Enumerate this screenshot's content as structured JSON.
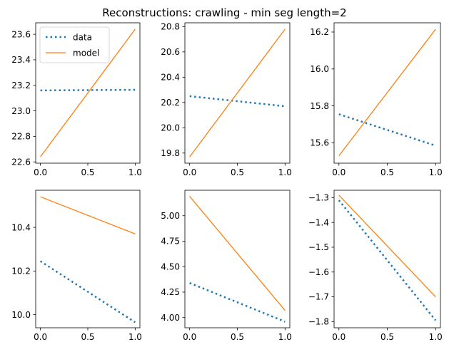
{
  "figure": {
    "title": "Reconstructions: crawling - min seg length=2",
    "colors": {
      "data": "#1f77b4",
      "model": "#ff7f0e"
    }
  },
  "legend": {
    "entries": [
      {
        "label": "data",
        "style": "dotted",
        "color": "#1f77b4"
      },
      {
        "label": "model",
        "style": "solid",
        "color": "#ff7f0e"
      }
    ]
  },
  "chart_data": [
    {
      "type": "line",
      "x": [
        0,
        1
      ],
      "xlim": [
        -0.05,
        1.05
      ],
      "ylim": [
        22.59,
        23.69
      ],
      "xticks": [
        "0.0",
        "0.5",
        "1.0"
      ],
      "yticks": [
        "22.6",
        "22.8",
        "23.0",
        "23.2",
        "23.4",
        "23.6"
      ],
      "series": [
        {
          "name": "data",
          "values": [
            23.16,
            23.165
          ]
        },
        {
          "name": "model",
          "values": [
            22.64,
            23.64
          ]
        }
      ]
    },
    {
      "type": "line",
      "x": [
        0,
        1
      ],
      "xlim": [
        -0.05,
        1.05
      ],
      "ylim": [
        19.72,
        20.83
      ],
      "xticks": [
        "0.0",
        "0.5",
        "1.0"
      ],
      "yticks": [
        "19.8",
        "20.0",
        "20.2",
        "20.4",
        "20.6",
        "20.8"
      ],
      "series": [
        {
          "name": "data",
          "values": [
            20.25,
            20.17
          ]
        },
        {
          "name": "model",
          "values": [
            19.77,
            20.78
          ]
        }
      ]
    },
    {
      "type": "line",
      "x": [
        0,
        1
      ],
      "xlim": [
        -0.05,
        1.05
      ],
      "ylim": [
        15.49,
        16.25
      ],
      "xticks": [
        "0.0",
        "0.5",
        "1.0"
      ],
      "yticks": [
        "15.6",
        "15.8",
        "16.0",
        "16.2"
      ],
      "series": [
        {
          "name": "data",
          "values": [
            15.755,
            15.585
          ]
        },
        {
          "name": "model",
          "values": [
            15.53,
            16.215
          ]
        }
      ]
    },
    {
      "type": "line",
      "x": [
        0,
        1
      ],
      "xlim": [
        -0.05,
        1.05
      ],
      "ylim": [
        9.94,
        10.57
      ],
      "xticks": [
        "0.0",
        "0.5",
        "1.0"
      ],
      "yticks": [
        "10.0",
        "10.2",
        "10.4"
      ],
      "series": [
        {
          "name": "data",
          "values": [
            10.245,
            9.965
          ]
        },
        {
          "name": "model",
          "values": [
            10.54,
            10.37
          ]
        }
      ]
    },
    {
      "type": "line",
      "x": [
        0,
        1
      ],
      "xlim": [
        -0.05,
        1.05
      ],
      "ylim": [
        3.9,
        5.25
      ],
      "xticks": [
        "0.0",
        "0.5",
        "1.0"
      ],
      "yticks": [
        "4.00",
        "4.25",
        "4.50",
        "4.75",
        "5.00"
      ],
      "series": [
        {
          "name": "data",
          "values": [
            4.34,
            3.96
          ]
        },
        {
          "name": "model",
          "values": [
            5.19,
            4.07
          ]
        }
      ]
    },
    {
      "type": "line",
      "x": [
        0,
        1
      ],
      "xlim": [
        -0.05,
        1.05
      ],
      "ylim": [
        -1.825,
        -1.27
      ],
      "xticks": [
        "0.0",
        "0.5",
        "1.0"
      ],
      "yticks": [
        "−1.3",
        "−1.4",
        "−1.5",
        "−1.6",
        "−1.7",
        "−1.8"
      ],
      "series": [
        {
          "name": "data",
          "values": [
            -1.31,
            -1.795
          ]
        },
        {
          "name": "model",
          "values": [
            -1.29,
            -1.7
          ]
        }
      ]
    }
  ]
}
